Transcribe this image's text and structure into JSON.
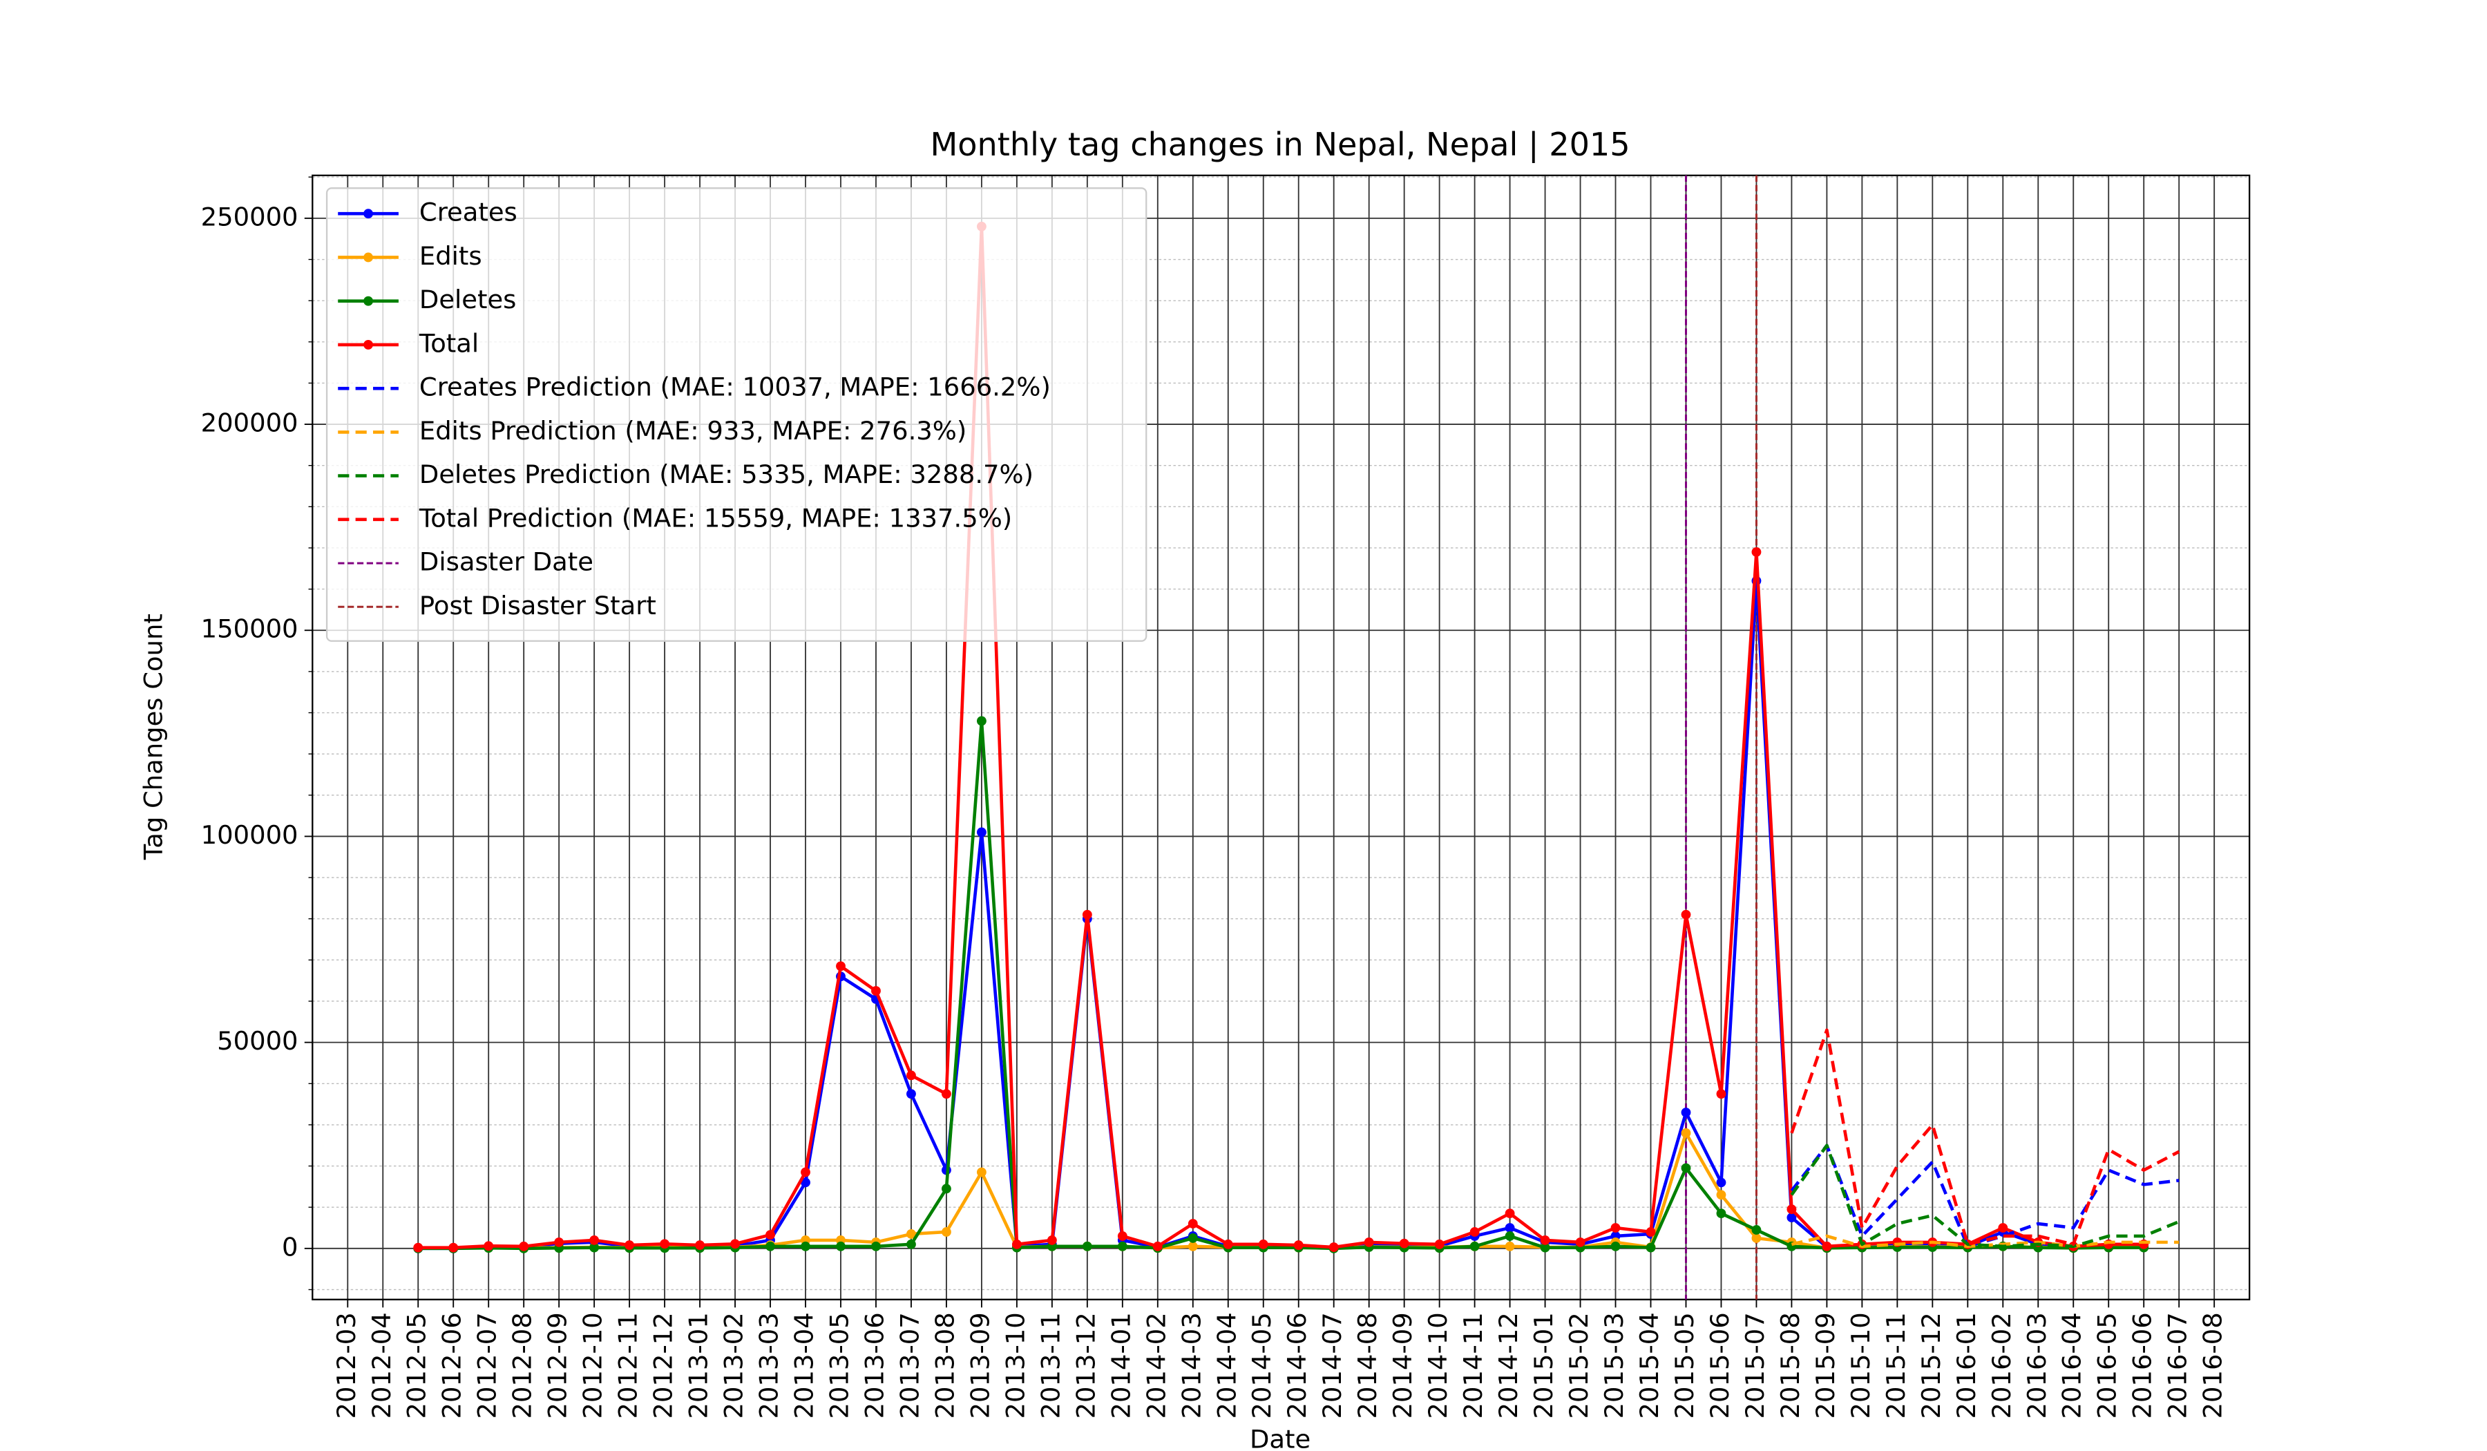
{
  "chart_data": {
    "type": "line",
    "title": "Monthly tag changes in Nepal, Nepal | 2015",
    "xlabel": "Date",
    "ylabel": "Tag Changes Count",
    "x": [
      "2012-05",
      "2012-06",
      "2012-07",
      "2012-08",
      "2012-09",
      "2012-10",
      "2012-11",
      "2012-12",
      "2013-01",
      "2013-02",
      "2013-03",
      "2013-04",
      "2013-05",
      "2013-06",
      "2013-07",
      "2013-08",
      "2013-09",
      "2013-10",
      "2013-11",
      "2013-12",
      "2014-01",
      "2014-02",
      "2014-03",
      "2014-04",
      "2014-05",
      "2014-06",
      "2014-07",
      "2014-08",
      "2014-09",
      "2014-10",
      "2014-11",
      "2014-12",
      "2015-01",
      "2015-02",
      "2015-03",
      "2015-04",
      "2015-05",
      "2015-06",
      "2015-07",
      "2015-08",
      "2015-09",
      "2015-10",
      "2015-11",
      "2015-12",
      "2016-01",
      "2016-02",
      "2016-03",
      "2016-04",
      "2016-05",
      "2016-06"
    ],
    "xlim": [
      "2012-02",
      "2016-09"
    ],
    "xticks": [
      "2012-03",
      "2012-04",
      "2012-05",
      "2012-06",
      "2012-07",
      "2012-08",
      "2012-09",
      "2012-10",
      "2012-11",
      "2012-12",
      "2013-01",
      "2013-02",
      "2013-03",
      "2013-04",
      "2013-05",
      "2013-06",
      "2013-07",
      "2013-08",
      "2013-09",
      "2013-10",
      "2013-11",
      "2013-12",
      "2014-01",
      "2014-02",
      "2014-03",
      "2014-04",
      "2014-05",
      "2014-06",
      "2014-07",
      "2014-08",
      "2014-09",
      "2014-10",
      "2014-11",
      "2014-12",
      "2015-01",
      "2015-02",
      "2015-03",
      "2015-04",
      "2015-05",
      "2015-06",
      "2015-07",
      "2015-08",
      "2015-09",
      "2015-10",
      "2015-11",
      "2015-12",
      "2016-01",
      "2016-02",
      "2016-03",
      "2016-04",
      "2016-05",
      "2016-06",
      "2016-07",
      "2016-08"
    ],
    "ylim": [
      -12400,
      260400
    ],
    "yticks": [
      0,
      50000,
      100000,
      150000,
      200000,
      250000
    ],
    "yminorticks": [
      -10000,
      10000,
      20000,
      30000,
      40000,
      60000,
      70000,
      80000,
      90000,
      110000,
      120000,
      130000,
      140000,
      160000,
      170000,
      180000,
      190000,
      210000,
      220000,
      230000,
      240000,
      260000
    ],
    "grid": true,
    "legend": "upper left",
    "series": [
      {
        "name": "Creates",
        "color": "blue",
        "marker": true,
        "values": [
          0,
          0,
          300,
          300,
          1200,
          1500,
          500,
          700,
          500,
          600,
          2000,
          16000,
          66000,
          60500,
          37500,
          19000,
          101000,
          500,
          1000,
          80000,
          2000,
          300,
          3000,
          500,
          500,
          400,
          200,
          800,
          700,
          600,
          3000,
          5000,
          1500,
          1000,
          3000,
          3500,
          33000,
          16000,
          162000,
          7500,
          300,
          500,
          800,
          800,
          500,
          4000,
          1000,
          300,
          500,
          500
        ]
      },
      {
        "name": "Edits",
        "color": "orange",
        "marker": true,
        "values": [
          100,
          100,
          200,
          200,
          200,
          300,
          200,
          300,
          200,
          300,
          800,
          2000,
          2000,
          1500,
          3500,
          4000,
          18500,
          300,
          500,
          500,
          500,
          100,
          500,
          300,
          300,
          200,
          100,
          400,
          300,
          300,
          500,
          500,
          300,
          300,
          1500,
          300,
          28000,
          13000,
          2500,
          1500,
          100,
          300,
          400,
          400,
          300,
          500,
          300,
          100,
          300,
          300
        ]
      },
      {
        "name": "Deletes",
        "color": "green",
        "marker": true,
        "values": [
          0,
          0,
          100,
          0,
          100,
          200,
          100,
          100,
          100,
          200,
          500,
          500,
          500,
          500,
          1000,
          14500,
          128000,
          200,
          500,
          500,
          500,
          100,
          2500,
          200,
          200,
          200,
          0,
          300,
          200,
          100,
          500,
          3000,
          200,
          200,
          500,
          200,
          19500,
          8500,
          4500,
          500,
          100,
          200,
          300,
          300,
          200,
          500,
          200,
          100,
          200,
          200
        ]
      },
      {
        "name": "Total",
        "color": "red",
        "marker": true,
        "values": [
          200,
          200,
          600,
          500,
          1500,
          2000,
          800,
          1100,
          800,
          1100,
          3300,
          18500,
          68500,
          62500,
          42000,
          37500,
          248000,
          1000,
          2000,
          81000,
          3000,
          500,
          6000,
          1000,
          1000,
          800,
          300,
          1500,
          1200,
          1000,
          4000,
          8500,
          2000,
          1500,
          5000,
          4000,
          81000,
          37500,
          169000,
          9500,
          500,
          1000,
          1500,
          1500,
          1000,
          5000,
          1500,
          500,
          1000,
          1000
        ]
      },
      {
        "name": "Creates Prediction (MAE: 10037, MAPE: 1666.2%)",
        "color": "blue",
        "linestyle": "dashed",
        "x": [
          "2015-08",
          "2015-09",
          "2015-10",
          "2015-11",
          "2015-12",
          "2016-01",
          "2016-02",
          "2016-03",
          "2016-04",
          "2016-05",
          "2016-06",
          "2016-07"
        ],
        "values": [
          14000,
          25000,
          3000,
          12000,
          21000,
          500,
          3000,
          6000,
          5000,
          19000,
          15500,
          16500
        ]
      },
      {
        "name": "Edits Prediction (MAE: 933, MAPE: 276.3%)",
        "color": "orange",
        "linestyle": "dashed",
        "x": [
          "2015-08",
          "2015-09",
          "2015-10",
          "2015-11",
          "2015-12",
          "2016-01",
          "2016-02",
          "2016-03",
          "2016-04",
          "2016-05",
          "2016-06",
          "2016-07"
        ],
        "values": [
          1000,
          3000,
          500,
          1000,
          1500,
          500,
          1000,
          1500,
          500,
          1500,
          1500,
          1500
        ]
      },
      {
        "name": "Deletes Prediction (MAE: 5335, MAPE: 3288.7%)",
        "color": "green",
        "linestyle": "dashed",
        "x": [
          "2015-08",
          "2015-09",
          "2015-10",
          "2015-11",
          "2015-12",
          "2016-01",
          "2016-02",
          "2016-03",
          "2016-04",
          "2016-05",
          "2016-06",
          "2016-07"
        ],
        "values": [
          13000,
          25000,
          1000,
          6000,
          8000,
          1000,
          500,
          1000,
          500,
          3000,
          3000,
          6500
        ]
      },
      {
        "name": "Total Prediction (MAE: 15559, MAPE: 1337.5%)",
        "color": "red",
        "linestyle": "dashed",
        "x": [
          "2015-08",
          "2015-09",
          "2015-10",
          "2015-11",
          "2015-12",
          "2016-01",
          "2016-02",
          "2016-03",
          "2016-04",
          "2016-05",
          "2016-06",
          "2016-07"
        ],
        "values": [
          28000,
          53000,
          5000,
          20000,
          30000,
          1000,
          3000,
          3000,
          1000,
          24000,
          19000,
          23500
        ]
      }
    ],
    "vlines": [
      {
        "name": "Disaster Date",
        "color": "purple",
        "x": "2015-05"
      },
      {
        "name": "Post Disaster Start",
        "color": "brown",
        "x": "2015-07"
      }
    ]
  }
}
